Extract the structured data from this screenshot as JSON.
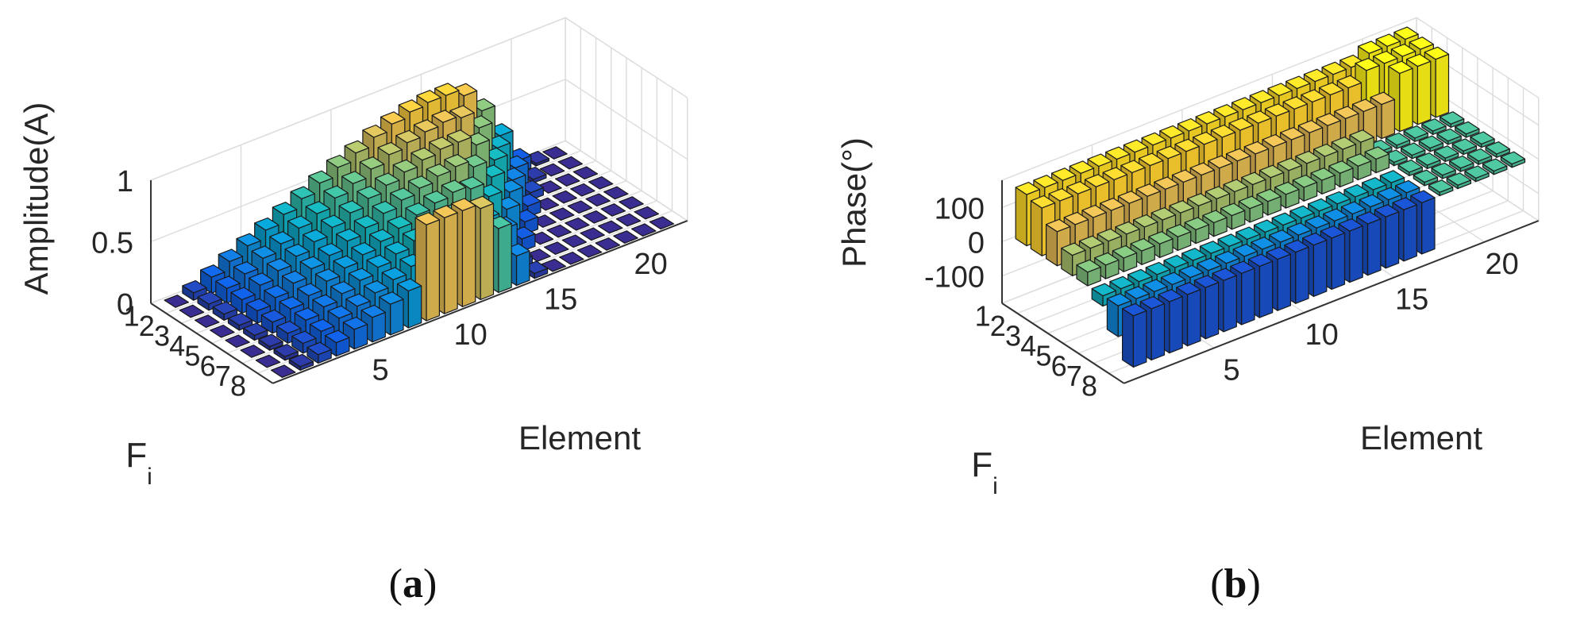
{
  "panels": [
    {
      "caption_open": "(",
      "caption_letter": "a",
      "caption_close": ")",
      "chart_data": {
        "type": "bar3d",
        "title": "",
        "xlabel": "Element",
        "ylabel_main": "F",
        "ylabel_sub": "i",
        "zlabel": "Amplitude(A)",
        "x_ticks": [
          "5",
          "10",
          "15",
          "20"
        ],
        "y_ticks": [
          "1",
          "2",
          "3",
          "4",
          "5",
          "6",
          "7",
          "8"
        ],
        "z_ticks": [
          "0",
          "0.5",
          "1"
        ],
        "xlim": [
          0,
          23
        ],
        "ylim": [
          0,
          8
        ],
        "zlim": [
          0,
          1
        ],
        "grid": true,
        "colormap": "parula",
        "element_count": 22,
        "f_count": 8,
        "series": [
          {
            "f": 1,
            "values": [
              0.0,
              0.06,
              0.13,
              0.2,
              0.27,
              0.34,
              0.41,
              0.48,
              0.55,
              0.62,
              0.68,
              0.75,
              0.8,
              0.84,
              0.86,
              0.86,
              0.8,
              0.62,
              0.36,
              0.1,
              0.02,
              0.0
            ]
          },
          {
            "f": 2,
            "values": [
              0.0,
              0.05,
              0.12,
              0.18,
              0.25,
              0.31,
              0.38,
              0.44,
              0.51,
              0.57,
              0.63,
              0.69,
              0.73,
              0.76,
              0.78,
              0.76,
              0.62,
              0.4,
              0.18,
              0.03,
              0.0,
              0.0
            ]
          },
          {
            "f": 3,
            "values": [
              0.0,
              0.05,
              0.11,
              0.17,
              0.23,
              0.29,
              0.35,
              0.41,
              0.47,
              0.53,
              0.58,
              0.63,
              0.67,
              0.7,
              0.7,
              0.62,
              0.44,
              0.22,
              0.06,
              0.0,
              0.0,
              0.0
            ]
          },
          {
            "f": 4,
            "values": [
              0.0,
              0.04,
              0.1,
              0.15,
              0.21,
              0.27,
              0.32,
              0.38,
              0.43,
              0.49,
              0.54,
              0.58,
              0.62,
              0.64,
              0.58,
              0.44,
              0.26,
              0.09,
              0.0,
              0.0,
              0.0,
              0.0
            ]
          },
          {
            "f": 5,
            "values": [
              0.0,
              0.04,
              0.09,
              0.14,
              0.19,
              0.25,
              0.3,
              0.35,
              0.4,
              0.45,
              0.5,
              0.54,
              0.57,
              0.54,
              0.42,
              0.26,
              0.1,
              0.0,
              0.0,
              0.0,
              0.0,
              0.0
            ]
          },
          {
            "f": 6,
            "values": [
              0.0,
              0.03,
              0.08,
              0.13,
              0.18,
              0.23,
              0.28,
              0.33,
              0.38,
              0.43,
              0.47,
              0.51,
              0.48,
              0.38,
              0.24,
              0.1,
              0.0,
              0.0,
              0.0,
              0.0,
              0.0,
              0.0
            ]
          },
          {
            "f": 7,
            "values": [
              0.0,
              0.03,
              0.08,
              0.12,
              0.17,
              0.21,
              0.26,
              0.31,
              0.36,
              0.41,
              0.45,
              0.42,
              0.32,
              0.18,
              0.06,
              0.0,
              0.0,
              0.0,
              0.0,
              0.0,
              0.0,
              0.0
            ]
          },
          {
            "f": 8,
            "values": [
              0.0,
              0.03,
              0.07,
              0.11,
              0.16,
              0.2,
              0.25,
              0.3,
              0.78,
              0.78,
              0.78,
              0.74,
              0.52,
              0.24,
              0.04,
              0.0,
              0.0,
              0.0,
              0.0,
              0.0,
              0.0,
              0.0
            ]
          }
        ]
      }
    },
    {
      "caption_open": "(",
      "caption_letter": "b",
      "caption_close": ")",
      "chart_data": {
        "type": "bar3d",
        "title": "",
        "xlabel": "Element",
        "ylabel_main": "F",
        "ylabel_sub": "i",
        "zlabel": "Phase(°)",
        "x_ticks": [
          "5",
          "10",
          "15",
          "20"
        ],
        "y_ticks": [
          "1",
          "2",
          "3",
          "4",
          "5",
          "6",
          "7",
          "8"
        ],
        "z_ticks": [
          "-100",
          "0",
          "100"
        ],
        "xlim": [
          0,
          23
        ],
        "ylim": [
          0,
          8
        ],
        "zlim": [
          -180,
          180
        ],
        "grid": true,
        "colormap": "parula",
        "element_count": 22,
        "f_count": 8,
        "series": [
          {
            "f": 1,
            "values": [
              150,
              150,
              150,
              150,
              150,
              150,
              150,
              150,
              150,
              150,
              150,
              150,
              150,
              150,
              150,
              150,
              150,
              150,
              150,
              170,
              170,
              170
            ]
          },
          {
            "f": 2,
            "values": [
              140,
              140,
              140,
              140,
              140,
              140,
              140,
              140,
              140,
              140,
              140,
              140,
              140,
              140,
              140,
              140,
              140,
              140,
              170,
              170,
              170,
              170
            ]
          },
          {
            "f": 3,
            "values": [
              100,
              100,
              100,
              100,
              100,
              100,
              100,
              100,
              100,
              100,
              100,
              100,
              100,
              100,
              100,
              100,
              100,
              100,
              100,
              170,
              170,
              170
            ]
          },
          {
            "f": 4,
            "values": [
              60,
              60,
              60,
              60,
              60,
              60,
              60,
              60,
              60,
              60,
              60,
              60,
              60,
              60,
              60,
              60,
              60,
              10,
              10,
              10,
              10,
              10
            ]
          },
          {
            "f": 5,
            "values": [
              40,
              40,
              40,
              40,
              40,
              40,
              40,
              40,
              40,
              40,
              40,
              40,
              40,
              40,
              40,
              40,
              40,
              10,
              10,
              10,
              10,
              10
            ]
          },
          {
            "f": 6,
            "values": [
              -30,
              -30,
              -30,
              -30,
              -30,
              -30,
              -30,
              -30,
              -30,
              -30,
              -30,
              -30,
              -30,
              -30,
              -30,
              -30,
              -30,
              10,
              10,
              10,
              10,
              10
            ]
          },
          {
            "f": 7,
            "values": [
              -90,
              -90,
              -90,
              -90,
              -90,
              -90,
              -90,
              -90,
              -90,
              -90,
              -90,
              -90,
              -90,
              -90,
              -90,
              -90,
              -90,
              10,
              10,
              10,
              10,
              10
            ]
          },
          {
            "f": 8,
            "values": [
              -150,
              -150,
              -150,
              -150,
              -150,
              -150,
              -150,
              -150,
              -150,
              -150,
              -150,
              -150,
              -150,
              -150,
              -150,
              -150,
              -150,
              10,
              10,
              10,
              10,
              10
            ]
          }
        ]
      }
    }
  ]
}
